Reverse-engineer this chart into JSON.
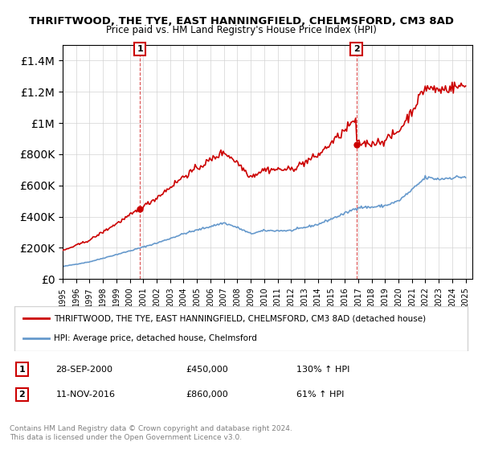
{
  "title1": "THRIFTWOOD, THE TYE, EAST HANNINGFIELD, CHELMSFORD, CM3 8AD",
  "title2": "Price paid vs. HM Land Registry's House Price Index (HPI)",
  "sale1_date": "28-SEP-2000",
  "sale1_price": 450000,
  "sale1_hpi": "130% ↑ HPI",
  "sale2_date": "11-NOV-2016",
  "sale2_price": 860000,
  "sale2_hpi": "61% ↑ HPI",
  "legend1": "THRIFTWOOD, THE TYE, EAST HANNINGFIELD, CHELMSFORD, CM3 8AD (detached house)",
  "legend2": "HPI: Average price, detached house, Chelmsford",
  "footer1": "Contains HM Land Registry data © Crown copyright and database right 2024.",
  "footer2": "This data is licensed under the Open Government Licence v3.0.",
  "red_color": "#cc0000",
  "blue_color": "#6699cc",
  "ylim_max": 1500000,
  "sale1_x": 2000.75,
  "sale2_x": 2016.87
}
